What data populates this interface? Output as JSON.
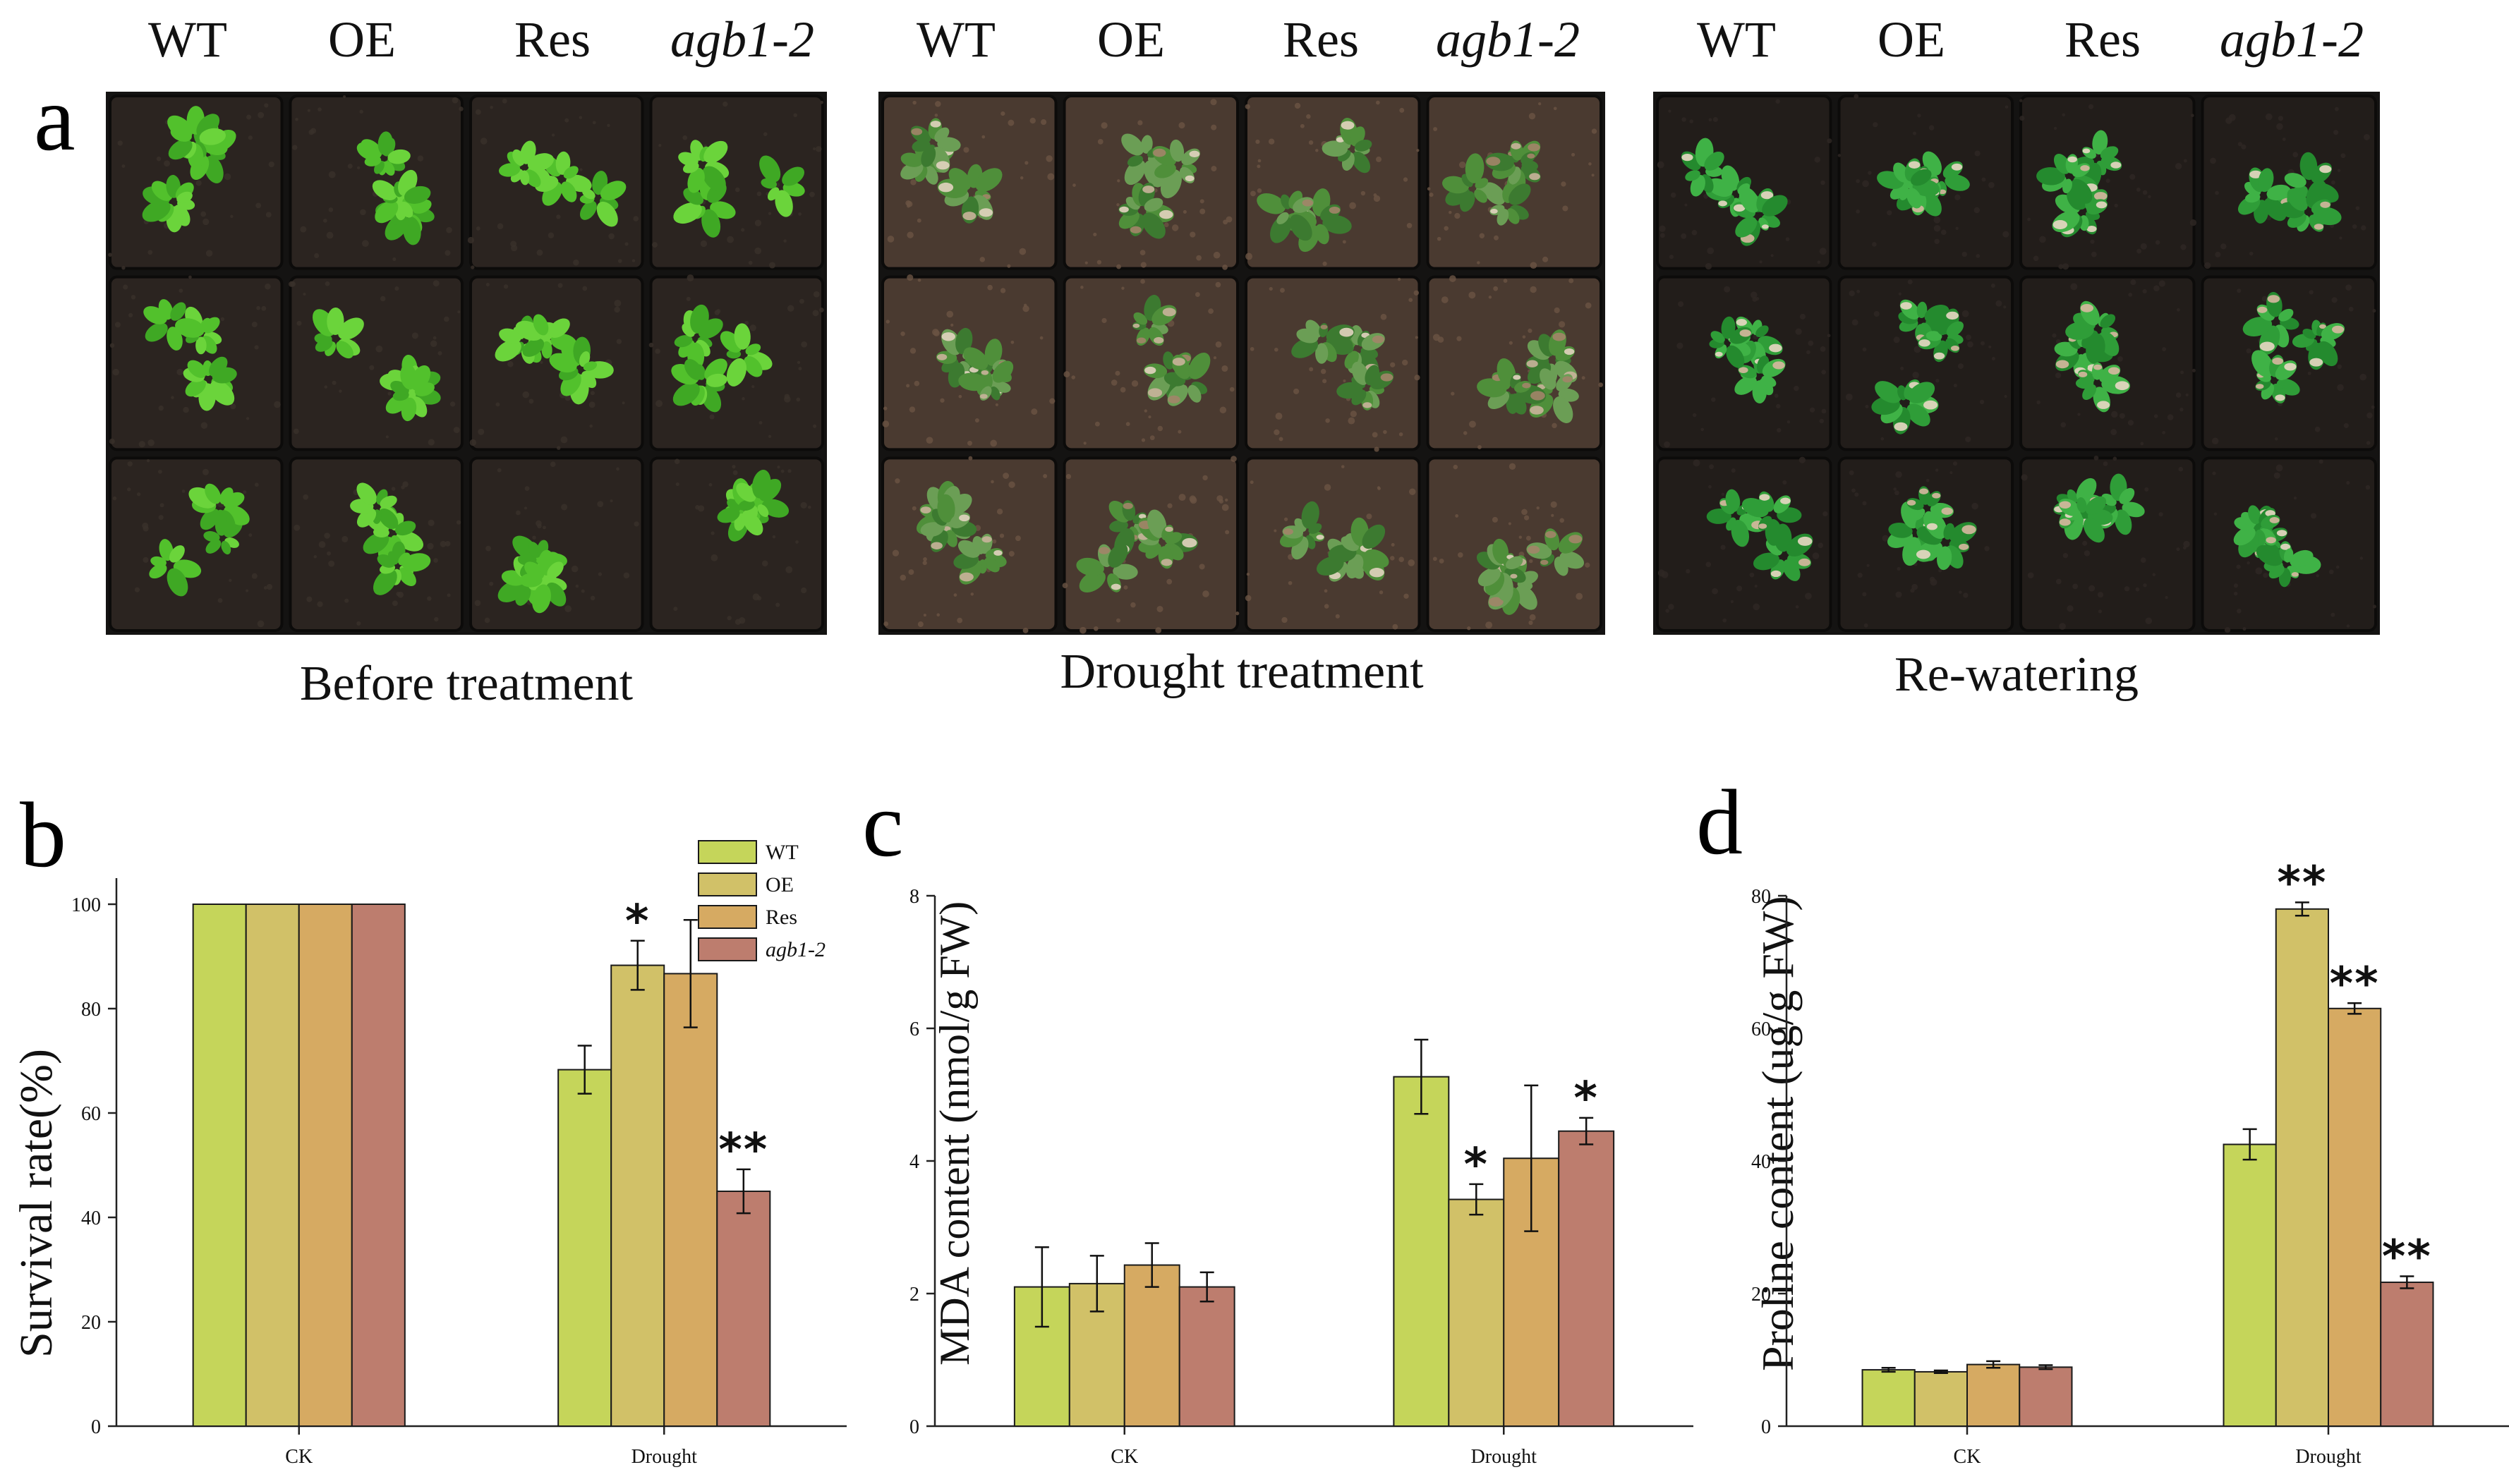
{
  "panels": {
    "a": {
      "letter": "a"
    },
    "b": {
      "letter": "b"
    },
    "c": {
      "letter": "c"
    },
    "d": {
      "letter": "d"
    }
  },
  "photos": {
    "genotypes": [
      "WT",
      "OE",
      "Res",
      "agb1-2"
    ],
    "captions": [
      "Before treatment",
      "Drought treatment",
      "Re-watering"
    ]
  },
  "colors": {
    "WT": "#c5d55a",
    "OE": "#d1c168",
    "Res": "#d6aa62",
    "agb1-2": "#bd7d6e",
    "soil_dark": "#2a2521",
    "leaf_green": "#5cbf2f"
  },
  "chart_data": [
    {
      "type": "bar",
      "panel": "b",
      "title": "",
      "xlabel": "",
      "ylabel": "Survival rate(%)",
      "categories": [
        "CK",
        "Drought"
      ],
      "ylim": [
        0,
        105
      ],
      "yticks": [
        0,
        20,
        40,
        60,
        80,
        100
      ],
      "legend": {
        "placement": "top-right",
        "entries": [
          "WT",
          "OE",
          "Res",
          "agb1-2"
        ]
      },
      "series": [
        {
          "name": "WT",
          "values": [
            100,
            68.3
          ],
          "errors": [
            0,
            4.6
          ],
          "sig": [
            "",
            ""
          ]
        },
        {
          "name": "OE",
          "values": [
            100,
            88.3
          ],
          "errors": [
            0,
            4.7
          ],
          "sig": [
            "",
            "*"
          ]
        },
        {
          "name": "Res",
          "values": [
            100,
            86.7
          ],
          "errors": [
            0,
            10.3
          ],
          "sig": [
            "",
            ""
          ]
        },
        {
          "name": "agb1-2",
          "values": [
            100,
            45.0
          ],
          "errors": [
            0,
            4.2
          ],
          "sig": [
            "",
            "**"
          ]
        }
      ]
    },
    {
      "type": "bar",
      "panel": "c",
      "title": "",
      "xlabel": "",
      "ylabel": "MDA content (nmol/g FW)",
      "categories": [
        "CK",
        "Drought"
      ],
      "ylim": [
        0,
        8
      ],
      "yticks": [
        0,
        2,
        4,
        6,
        8
      ],
      "series": [
        {
          "name": "WT",
          "values": [
            2.1,
            5.27
          ],
          "errors": [
            0.6,
            0.56
          ],
          "sig": [
            "",
            ""
          ]
        },
        {
          "name": "OE",
          "values": [
            2.15,
            3.42
          ],
          "errors": [
            0.42,
            0.23
          ],
          "sig": [
            "",
            "*"
          ]
        },
        {
          "name": "Res",
          "values": [
            2.43,
            4.04
          ],
          "errors": [
            0.33,
            1.1
          ],
          "sig": [
            "",
            ""
          ]
        },
        {
          "name": "agb1-2",
          "values": [
            2.1,
            4.45
          ],
          "errors": [
            0.22,
            0.2
          ],
          "sig": [
            "",
            "*"
          ]
        }
      ]
    },
    {
      "type": "bar",
      "panel": "d",
      "title": "",
      "xlabel": "",
      "ylabel": "Proline content (ug/g FW)",
      "categories": [
        "CK",
        "Drought"
      ],
      "ylim": [
        0,
        80
      ],
      "yticks": [
        0,
        20,
        40,
        60,
        80
      ],
      "series": [
        {
          "name": "WT",
          "values": [
            8.5,
            42.5
          ],
          "errors": [
            0.3,
            2.3
          ],
          "sig": [
            "",
            ""
          ]
        },
        {
          "name": "OE",
          "values": [
            8.2,
            78.0
          ],
          "errors": [
            0.2,
            1.0
          ],
          "sig": [
            "",
            "**"
          ]
        },
        {
          "name": "Res",
          "values": [
            9.3,
            63.0
          ],
          "errors": [
            0.5,
            0.8
          ],
          "sig": [
            "",
            "**"
          ]
        },
        {
          "name": "agb1-2",
          "values": [
            8.9,
            21.7
          ],
          "errors": [
            0.3,
            0.9
          ],
          "sig": [
            "",
            "**"
          ]
        }
      ]
    }
  ]
}
